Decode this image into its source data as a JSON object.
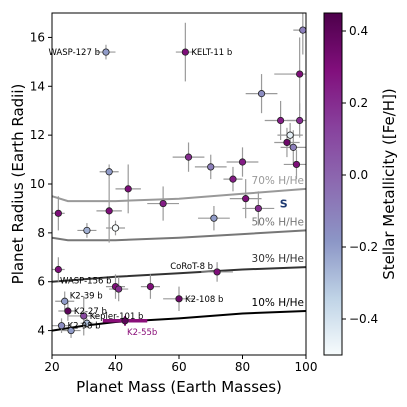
{
  "chart_data": {
    "type": "scatter",
    "title": "",
    "xlabel": "Planet Mass (Earth Masses)",
    "ylabel": "Planet Radius (Earth Radii)",
    "xlim": [
      20,
      100
    ],
    "ylim": [
      3,
      17
    ],
    "xticks": [
      20,
      40,
      60,
      80,
      100
    ],
    "yticks": [
      4,
      6,
      8,
      10,
      12,
      14,
      16
    ],
    "grid": false,
    "colorbar": {
      "label": "Stellar Metallicity ([Fe/H])",
      "range": [
        -0.5,
        0.45
      ],
      "ticks": [
        0.4,
        0.2,
        0.0,
        -0.2,
        -0.4
      ],
      "tick_labels": [
        "0.4",
        "0.2",
        "0.0",
        "−0.2",
        "−0.4"
      ],
      "colormap": [
        "#f7fcfd",
        "#bfd3e6",
        "#8c96c6",
        "#8c6bb1",
        "#88419d",
        "#810f7c",
        "#4d004b"
      ]
    },
    "composition_curves": [
      {
        "label": "70% H/He",
        "color": "#999999",
        "points": [
          [
            20,
            9.5
          ],
          [
            25,
            9.3
          ],
          [
            40,
            9.3
          ],
          [
            60,
            9.4
          ],
          [
            80,
            9.6
          ],
          [
            100,
            9.8
          ]
        ]
      },
      {
        "label": "50% H/He",
        "color": "#777777",
        "points": [
          [
            20,
            7.8
          ],
          [
            25,
            7.7
          ],
          [
            40,
            7.7
          ],
          [
            60,
            7.8
          ],
          [
            80,
            7.95
          ],
          [
            100,
            8.1
          ]
        ]
      },
      {
        "label": "30% H/He",
        "color": "#333333",
        "points": [
          [
            20,
            6.0
          ],
          [
            30,
            6.1
          ],
          [
            40,
            6.2
          ],
          [
            60,
            6.35
          ],
          [
            80,
            6.5
          ],
          [
            100,
            6.6
          ]
        ]
      },
      {
        "label": "10% H/He",
        "color": "#000000",
        "points": [
          [
            20,
            4.0
          ],
          [
            30,
            4.2
          ],
          [
            40,
            4.35
          ],
          [
            60,
            4.5
          ],
          [
            80,
            4.7
          ],
          [
            100,
            4.8
          ]
        ]
      }
    ],
    "planets": [
      {
        "x": 37,
        "y": 15.4,
        "xerr": 3,
        "yerr": 0.3,
        "feh": -0.2,
        "label": "WASP-127 b",
        "label_side": "left"
      },
      {
        "x": 62,
        "y": 15.4,
        "xerr": 3,
        "yerr": 1.2,
        "feh": 0.3,
        "label": "KELT-11 b",
        "label_side": "right"
      },
      {
        "x": 99,
        "y": 16.3,
        "xerr": 3,
        "yerr": 1.0,
        "feh": -0.1
      },
      {
        "x": 98,
        "y": 14.5,
        "xerr": 8,
        "yerr": 1.5,
        "feh": 0.3
      },
      {
        "x": 86,
        "y": 13.7,
        "xerr": 5,
        "yerr": 0.8,
        "feh": -0.15
      },
      {
        "x": 92,
        "y": 12.6,
        "xerr": 5,
        "yerr": 0.8,
        "feh": 0.25
      },
      {
        "x": 98,
        "y": 12.6,
        "xerr": 4,
        "yerr": 0.7,
        "feh": 0.2
      },
      {
        "x": 95,
        "y": 12.0,
        "xerr": 4,
        "yerr": 0.5,
        "feh": -0.45
      },
      {
        "x": 94,
        "y": 11.7,
        "xerr": 4,
        "yerr": 0.6,
        "feh": 0.35
      },
      {
        "x": 96,
        "y": 11.5,
        "xerr": 4,
        "yerr": 0.7,
        "feh": -0.1
      },
      {
        "x": 63,
        "y": 11.1,
        "xerr": 5,
        "yerr": 0.6,
        "feh": 0.2
      },
      {
        "x": 70,
        "y": 10.7,
        "xerr": 5,
        "yerr": 0.5,
        "feh": -0.1
      },
      {
        "x": 80,
        "y": 10.9,
        "xerr": 5,
        "yerr": 0.6,
        "feh": 0.25
      },
      {
        "x": 97,
        "y": 10.8,
        "xerr": 4,
        "yerr": 0.6,
        "feh": 0.3
      },
      {
        "x": 77,
        "y": 10.2,
        "xerr": 3,
        "yerr": 0.5,
        "feh": 0.25
      },
      {
        "x": 44,
        "y": 9.8,
        "xerr": 4,
        "yerr": 1.0,
        "feh": 0.3
      },
      {
        "x": 38,
        "y": 10.5,
        "xerr": 3,
        "yerr": 0.3,
        "feh": -0.2
      },
      {
        "x": 81,
        "y": 9.4,
        "xerr": 5,
        "yerr": 0.8,
        "feh": 0.3
      },
      {
        "x": 85,
        "y": 9.0,
        "xerr": 5,
        "yerr": 0.7,
        "feh": 0.2
      },
      {
        "x": 55,
        "y": 9.2,
        "xerr": 5,
        "yerr": 0.7,
        "feh": 0.25
      },
      {
        "x": 38,
        "y": 8.9,
        "xerr": 4,
        "yerr": 1.3,
        "feh": 0.3
      },
      {
        "x": 22,
        "y": 8.8,
        "xerr": 2,
        "yerr": 0.7,
        "feh": 0.3
      },
      {
        "x": 71,
        "y": 8.6,
        "xerr": 5,
        "yerr": 0.5,
        "feh": -0.2
      },
      {
        "x": 40,
        "y": 8.2,
        "xerr": 3,
        "yerr": 0.3,
        "feh": -0.5
      },
      {
        "x": 31,
        "y": 8.1,
        "xerr": 3,
        "yerr": 0.3,
        "feh": -0.25
      },
      {
        "x": 22,
        "y": 6.5,
        "xerr": 2,
        "yerr": 0.5,
        "feh": 0.3,
        "label": null
      },
      {
        "x": 72,
        "y": 6.4,
        "xerr": 5,
        "yerr": 0.4,
        "feh": 0.3,
        "label": "CoRoT-8 b",
        "label_side": "left-above"
      },
      {
        "x": 40,
        "y": 5.8,
        "xerr": 3,
        "yerr": 0.5,
        "feh": 0.3,
        "label": "WASP-156 b",
        "label_side": "left-above"
      },
      {
        "x": 41,
        "y": 5.7,
        "xerr": 3,
        "yerr": 0.5,
        "feh": 0.2
      },
      {
        "x": 51,
        "y": 5.8,
        "xerr": 3,
        "yerr": 0.5,
        "feh": 0.3
      },
      {
        "x": 24,
        "y": 5.2,
        "xerr": 3,
        "yerr": 0.4,
        "feh": -0.2,
        "label": "K2-39 b",
        "label_side": "right-above"
      },
      {
        "x": 60,
        "y": 5.3,
        "xerr": 5,
        "yerr": 0.5,
        "feh": 0.35,
        "label": "K2-108 b",
        "label_side": "right"
      },
      {
        "x": 25,
        "y": 4.8,
        "xerr": 3,
        "yerr": 0.4,
        "feh": 0.4,
        "label": "K2-27 b",
        "label_side": "right"
      },
      {
        "x": 30,
        "y": 4.6,
        "xerr": 5,
        "yerr": 0.8,
        "feh": 0.1,
        "label": "Kepler-101 b",
        "label_side": "right"
      },
      {
        "x": 31,
        "y": 4.3,
        "xerr": 2,
        "yerr": 0.2,
        "feh": -0.3
      },
      {
        "x": 23,
        "y": 4.2,
        "xerr": 3,
        "yerr": 0.3,
        "feh": -0.15,
        "label": "K2-98 b",
        "label_side": "right"
      },
      {
        "x": 26,
        "y": 4.0,
        "xerr": 3,
        "yerr": 0.3,
        "feh": -0.2
      },
      {
        "x": 43,
        "y": 4.4,
        "xerr": 7,
        "yerr": 0.2,
        "feh": 0.4,
        "label": "K2-55b",
        "label_side": "below-right",
        "highlight": true,
        "highlight_color": "#8a0e79"
      }
    ],
    "solar_system_marker": {
      "x": 93,
      "y": 9.2,
      "label": "S",
      "color": "#1f3b73"
    }
  }
}
